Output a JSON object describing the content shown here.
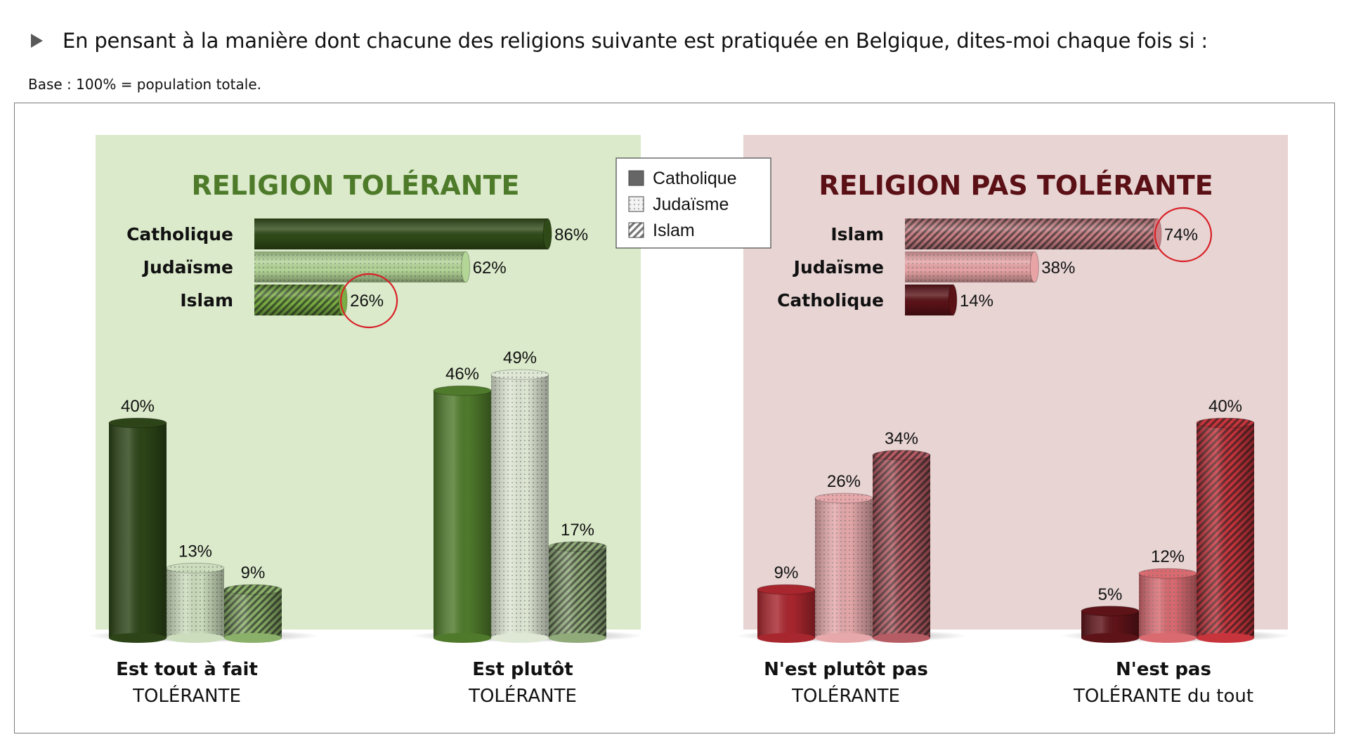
{
  "question": "En pensant à la manière dont chacune des religions suivante est pratiquée en Belgique, dites-moi chaque fois si :",
  "base": "Base : 100% = population totale.",
  "colors": {
    "tolerant_panel": "#dbeacb",
    "intolerant_panel": "#e7d4d3",
    "tolerant_title": "#4e7b2a",
    "intolerant_title": "#5b1016",
    "circle": "#d81f26"
  },
  "legend": [
    {
      "name": "Catholique",
      "icon": "solid-square-icon"
    },
    {
      "name": "Judaïsme",
      "icon": "dotted-square-icon"
    },
    {
      "name": "Islam",
      "icon": "hatched-square-icon"
    }
  ],
  "chart_data": [
    {
      "type": "bar",
      "orientation": "horizontal",
      "title": "RELIGION TOLÉRANTE",
      "categories": [
        "Catholique",
        "Judaïsme",
        "Islam"
      ],
      "values": [
        86,
        62,
        26
      ],
      "labels": [
        "86%",
        "62%",
        "26%"
      ],
      "highlighted": "Islam"
    },
    {
      "type": "bar",
      "orientation": "horizontal",
      "title": "RELIGION PAS TOLÉRANTE",
      "categories": [
        "Islam",
        "Judaïsme",
        "Catholique"
      ],
      "values": [
        74,
        38,
        14
      ],
      "labels": [
        "74%",
        "38%",
        "14%"
      ],
      "highlighted": "Islam"
    },
    {
      "type": "bar",
      "orientation": "vertical",
      "categories": [
        {
          "line1": "Est tout à fait",
          "line2": "TOLÉRANTE"
        },
        {
          "line1": "Est plutôt",
          "line2": "TOLÉRANTE"
        },
        {
          "line1": "N'est plutôt pas",
          "line2": "TOLÉRANTE"
        },
        {
          "line1": "N'est pas",
          "line2": "TOLÉRANTE du tout"
        }
      ],
      "series": [
        {
          "name": "Catholique",
          "values": [
            40,
            46,
            9,
            5
          ],
          "labels": [
            "40%",
            "46%",
            "9%",
            "5%"
          ]
        },
        {
          "name": "Judaïsme",
          "values": [
            13,
            49,
            26,
            12
          ],
          "labels": [
            "13%",
            "49%",
            "26%",
            "12%"
          ]
        },
        {
          "name": "Islam",
          "values": [
            9,
            17,
            34,
            40
          ],
          "labels": [
            "9%",
            "17%",
            "34%",
            "40%"
          ]
        }
      ],
      "ylim": [
        0,
        50
      ]
    }
  ]
}
